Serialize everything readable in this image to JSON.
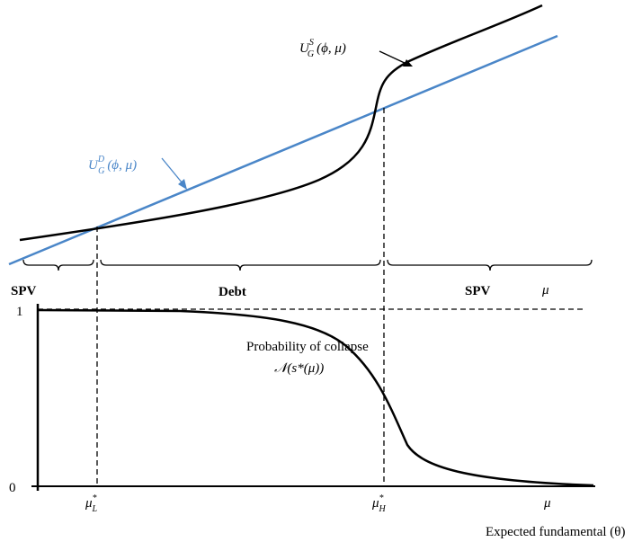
{
  "colors": {
    "line_dark": "#000000",
    "line_blue": "#4A86C8"
  },
  "top_panel": {
    "curve_s_label": {
      "main": "U",
      "sup": "S",
      "sub": "G",
      "args": "(ϕ, μ)"
    },
    "curve_d_label": {
      "main": "U",
      "sup": "D",
      "sub": "G",
      "args": "(ϕ, μ)"
    },
    "regions": [
      {
        "label": "SPV"
      },
      {
        "label": "Debt"
      },
      {
        "label": "SPV"
      }
    ],
    "axis_var": "μ"
  },
  "bottom_panel": {
    "y_top_label": "1",
    "y_bottom_label": "0",
    "collapse_title": "Probability of collapse",
    "collapse_formula": "𝒩(s*(μ))",
    "mu_low": {
      "main": "μ",
      "sup": "*",
      "sub": "L"
    },
    "mu_high": {
      "main": "μ",
      "sup": "*",
      "sub": "H"
    },
    "axis_var": "μ",
    "x_axis_title": "Expected fundamental (θ)"
  }
}
